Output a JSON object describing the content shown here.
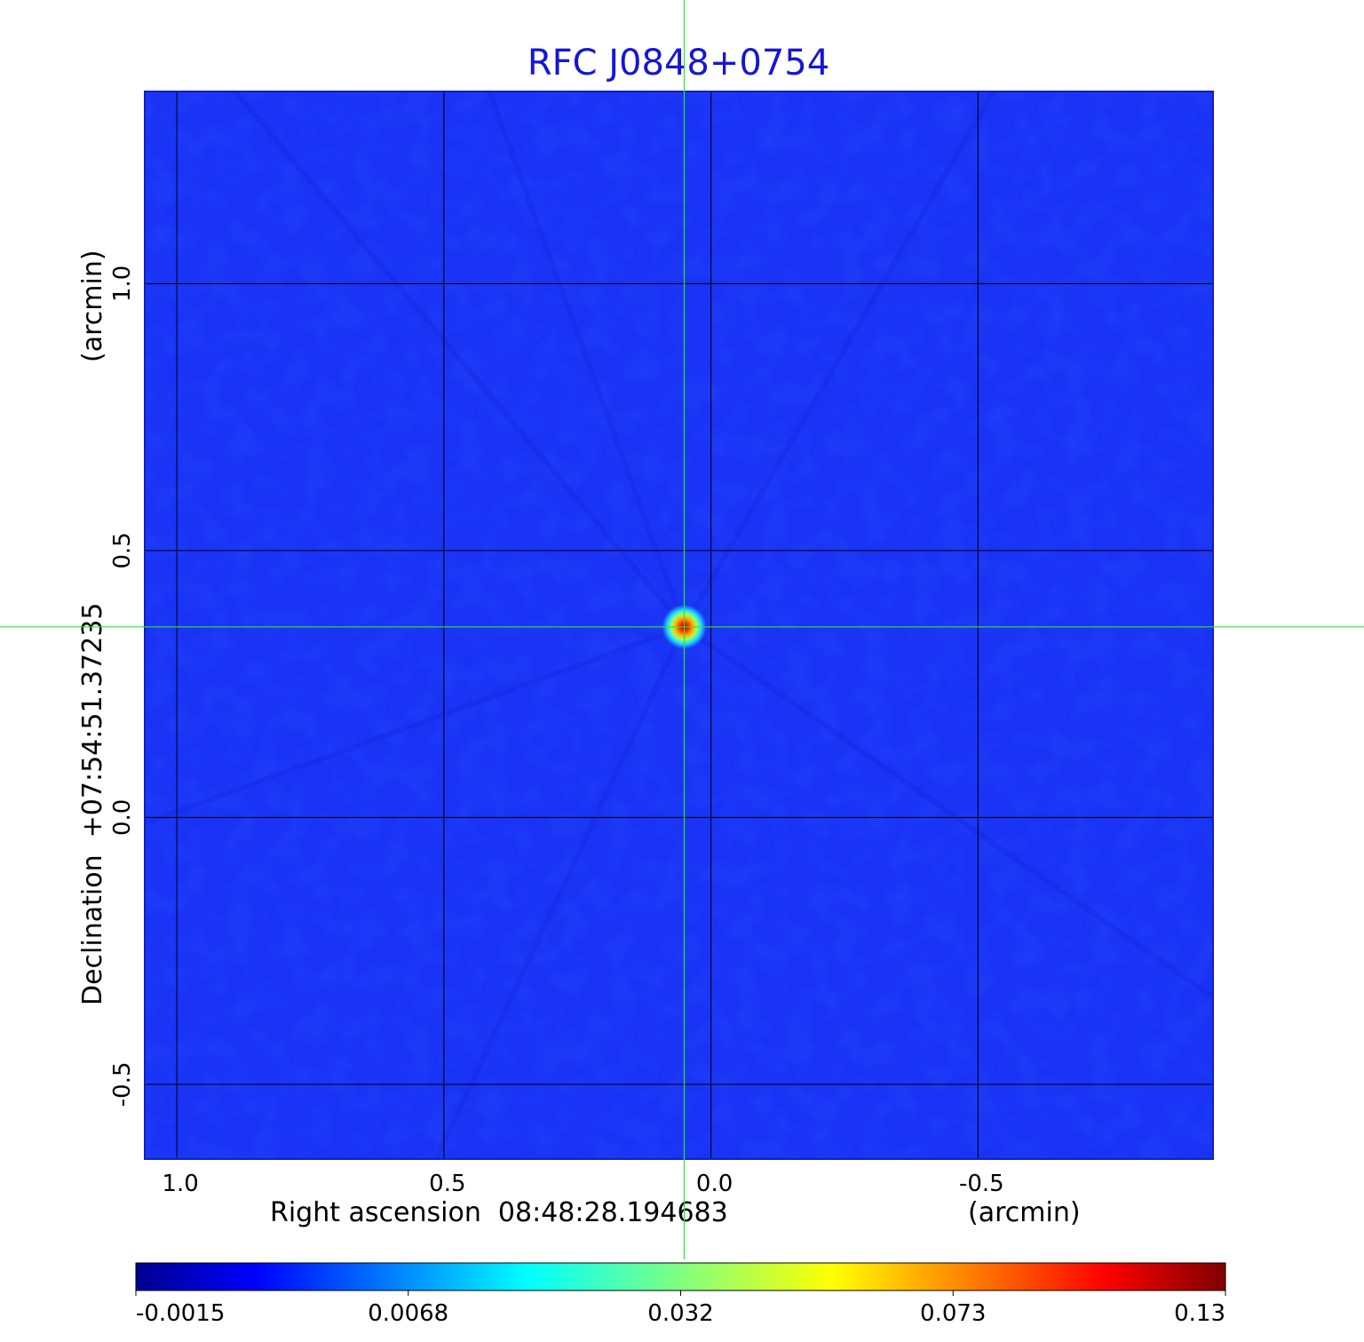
{
  "chart_data": {
    "type": "heatmap",
    "title": "RFC J0848+0754",
    "xlabel": "Right ascension  08:48:28.194683",
    "xunit": "(arcmin)",
    "ylabel": "Declination  +07:54:51.37235",
    "yunit": "(arcmin)",
    "x_ticks": [
      {
        "value": 1.0,
        "label": "1.0"
      },
      {
        "value": 0.5,
        "label": "0.5"
      },
      {
        "value": 0.0,
        "label": "0.0"
      },
      {
        "value": -0.5,
        "label": "-0.5"
      }
    ],
    "y_ticks": [
      {
        "value": 1.0,
        "label": "1.0"
      },
      {
        "value": 0.5,
        "label": "0.5"
      },
      {
        "value": 0.0,
        "label": "0.0"
      },
      {
        "value": -0.5,
        "label": "-0.5"
      }
    ],
    "xlim": [
      1.06,
      -0.94
    ],
    "ylim": [
      -0.64,
      1.36
    ],
    "x_reversed": true,
    "grid": true,
    "source_peak": {
      "x": 0.05,
      "y": 0.357,
      "value": 0.13
    },
    "crosshair": {
      "x": 0.05,
      "y": 0.357
    },
    "colorbar": {
      "ticks": [
        "-0.0015",
        "0.0068",
        "0.032",
        "0.073",
        "0.13"
      ],
      "colormap": "jet",
      "min": -0.0015,
      "max": 0.13
    },
    "colors": {
      "title": "#1616d6",
      "background_field": "#1a33f5",
      "crosshair": "#22ee22"
    }
  }
}
